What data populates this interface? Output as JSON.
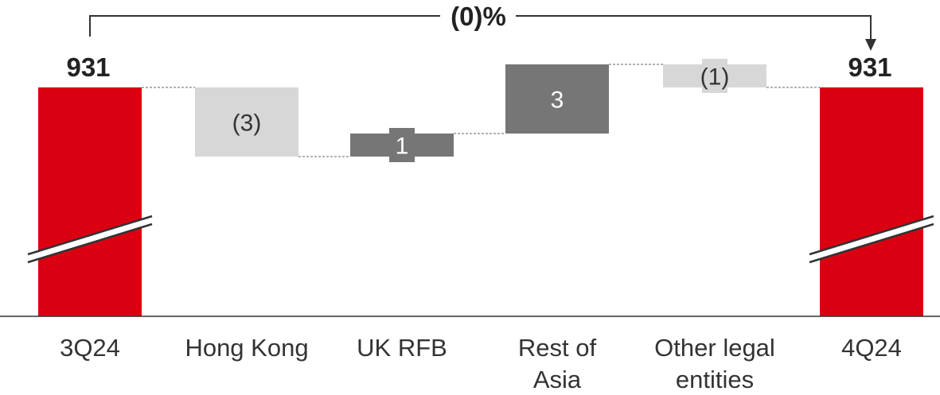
{
  "chart_data": {
    "type": "waterfall",
    "categories": [
      [
        "3Q24"
      ],
      [
        "Hong Kong"
      ],
      [
        "UK RFB"
      ],
      [
        "Rest of",
        "Asia"
      ],
      [
        "Other legal",
        "entities"
      ],
      [
        "4Q24"
      ]
    ],
    "values": [
      931,
      -3,
      1,
      3,
      -1,
      931
    ],
    "value_labels": [
      "931",
      "(3)",
      "1",
      "3",
      "(1)",
      "931"
    ],
    "kinds": [
      "total",
      "decrease",
      "increase",
      "increase",
      "decrease",
      "total"
    ],
    "change_label": "(0)%",
    "axis_break": true,
    "colors": {
      "total": "#db0011",
      "increase": "#767676",
      "decrease": "#d7d7d7",
      "increase_text": "#ffffff",
      "decrease_text": "#333333",
      "connector": "#666666",
      "axis": "#333333"
    }
  }
}
